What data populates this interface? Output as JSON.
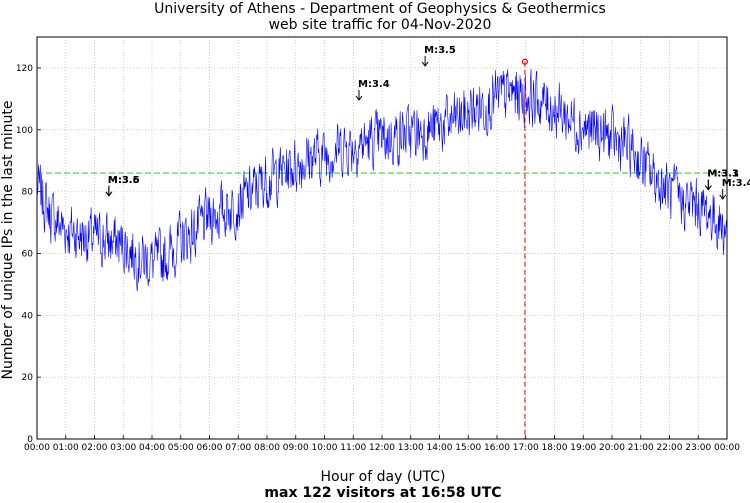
{
  "chart_data": {
    "type": "line",
    "title": "University of Athens - Department of Geophysics & Geothermics",
    "subtitle": "web site traffic for 04-Nov-2020",
    "xlabel": "Hour of day (UTC)",
    "xlabel_sub": "max 122 visitors at 16:58 UTC",
    "ylabel": "Number of unique IPs in the last minute",
    "xlim": [
      0,
      24
    ],
    "ylim": [
      0,
      130
    ],
    "x_ticks": [
      "00:00",
      "01:00",
      "02:00",
      "03:00",
      "04:00",
      "05:00",
      "06:00",
      "07:00",
      "08:00",
      "09:00",
      "10:00",
      "11:00",
      "12:00",
      "13:00",
      "14:00",
      "15:00",
      "16:00",
      "17:00",
      "18:00",
      "19:00",
      "20:00",
      "21:00",
      "22:00",
      "23:00",
      "00:00"
    ],
    "y_ticks": [
      0,
      20,
      40,
      60,
      80,
      100,
      120
    ],
    "grid": true,
    "series": [
      {
        "color": "#0000ff",
        "hour": [
          0,
          0.5,
          1,
          1.5,
          2,
          2.5,
          3,
          3.5,
          4,
          4.5,
          5,
          5.5,
          6,
          6.5,
          7,
          7.5,
          8,
          8.5,
          9,
          9.5,
          10,
          10.5,
          11,
          11.5,
          12,
          12.5,
          13,
          13.5,
          14,
          14.5,
          15,
          15.5,
          16,
          16.5,
          17,
          17.5,
          18,
          18.5,
          19,
          19.5,
          20,
          20.5,
          21,
          21.5,
          22,
          22.5,
          23,
          23.5,
          24
        ],
        "values": [
          82,
          72,
          68,
          66,
          65,
          64,
          63,
          59,
          57,
          59,
          64,
          67,
          72,
          74,
          76,
          80,
          84,
          86,
          89,
          91,
          92,
          94,
          95,
          96,
          97,
          98,
          99,
          100,
          101,
          103,
          105,
          108,
          110,
          112,
          111,
          109,
          107,
          104,
          101,
          99,
          97,
          95,
          90,
          84,
          80,
          77,
          75,
          72,
          67
        ],
        "noise_amplitude": 8
      }
    ],
    "average_line": {
      "value": 86,
      "color": "#00cc00"
    },
    "max_marker": {
      "hour": 16.97,
      "value": 122,
      "color": "#ff0000"
    },
    "annotations": [
      {
        "label": "M:3.5",
        "hour": 2.5,
        "value": 78
      },
      {
        "label": "M:3.6",
        "hour": 2.5,
        "value": 78
      },
      {
        "label": "M:3.4",
        "hour": 11.2,
        "value": 109
      },
      {
        "label": "M:3.5",
        "hour": 13.5,
        "value": 120
      },
      {
        "label": "M:3.1",
        "hour": 23.35,
        "value": 80
      },
      {
        "label": "M:3.3",
        "hour": 23.35,
        "value": 80
      },
      {
        "label": "M:3.4",
        "hour": 23.85,
        "value": 77
      }
    ]
  }
}
